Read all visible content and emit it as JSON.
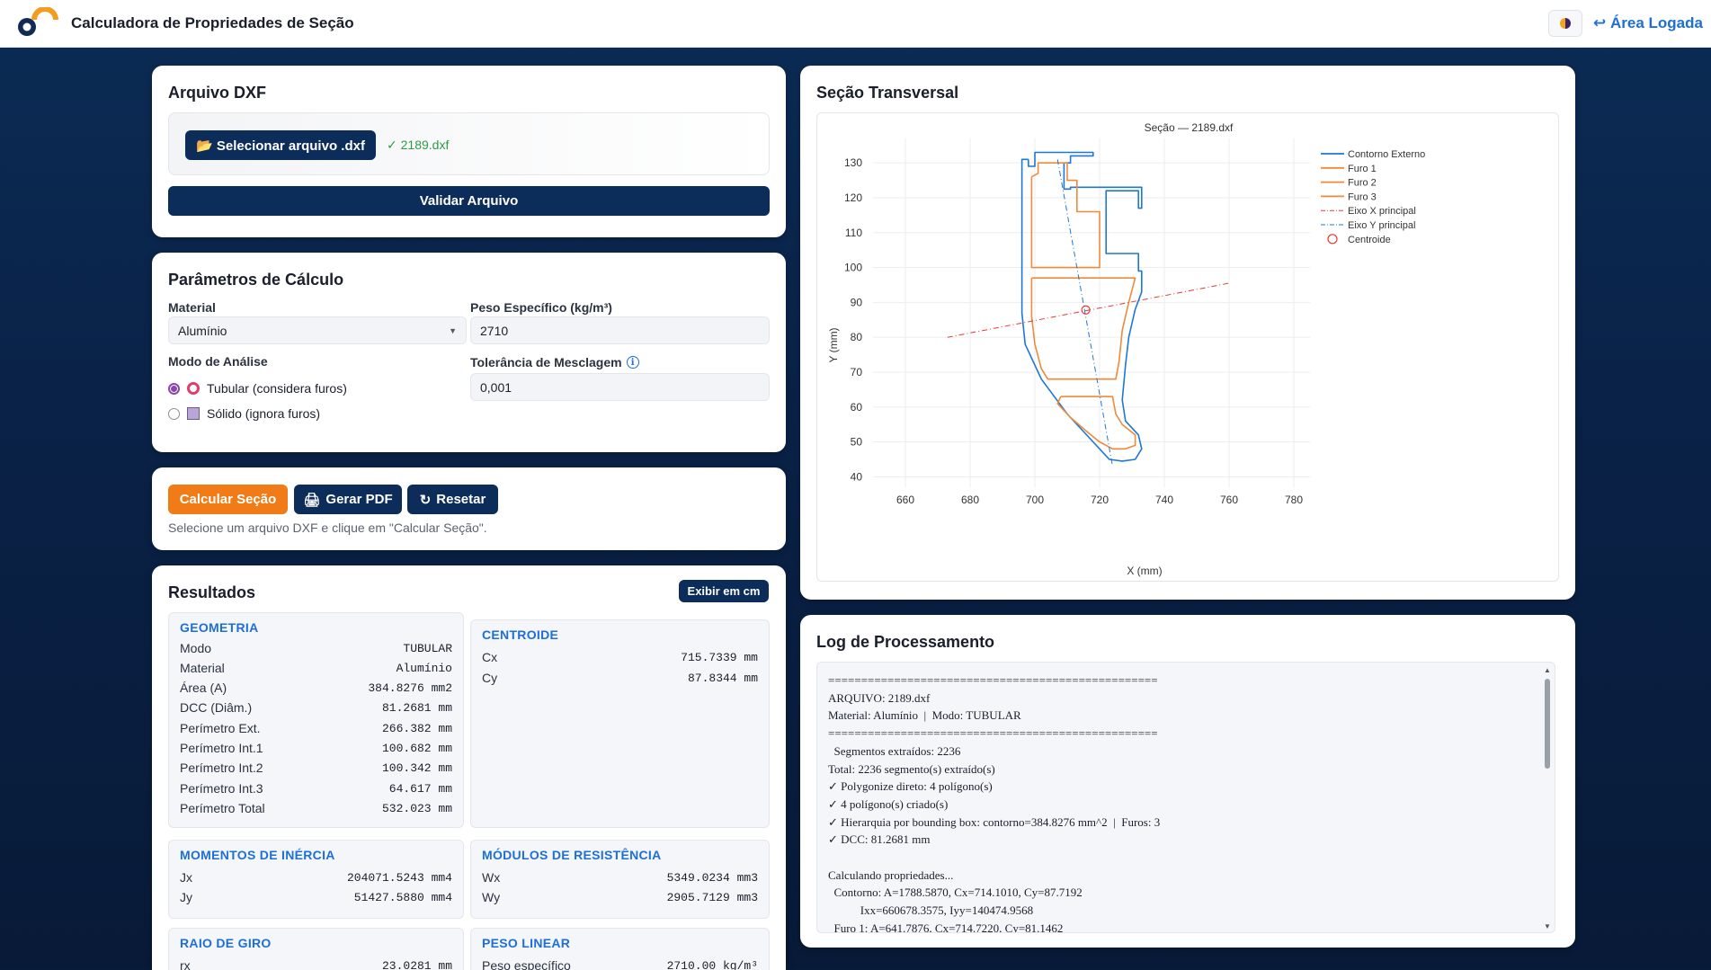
{
  "header": {
    "title": "Calculadora de Propriedades de Seção",
    "area_link": "↩ Área Logada"
  },
  "dxf_card": {
    "title": "Arquivo DXF",
    "select_button": "📂 Selecionar arquivo .dxf",
    "file_status": "✓ 2189.dxf",
    "validate_button": "Validar Arquivo"
  },
  "params": {
    "title": "Parâmetros de Cálculo",
    "material_label": "Material",
    "material_value": "Alumínio",
    "peso_label": "Peso Específico (kg/m³)",
    "peso_value": "2710",
    "modo_label": "Modo de Análise",
    "modo_options": [
      "Tubular (considera furos)",
      "Sólido (ignora furos)"
    ],
    "modo_selected": "Tubular (considera furos)",
    "tolerancia_label": "Tolerância de Mesclagem",
    "tolerancia_value": "0,001"
  },
  "actions": {
    "calc_button": "Calcular Seção",
    "pdf_button": "Gerar PDF",
    "reset_button": "Resetar",
    "hint": "Selecione um arquivo DXF e clique em \"Calcular Seção\"."
  },
  "results": {
    "title": "Resultados",
    "toggle_units": "Exibir em cm",
    "geometria": {
      "title": "GEOMETRIA",
      "rows": [
        {
          "k": "Modo",
          "v": "TUBULAR"
        },
        {
          "k": "Material",
          "v": "Alumínio"
        },
        {
          "k": "Área (A)",
          "v": "384.8276 mm2"
        },
        {
          "k": "DCC (Diâm.)",
          "v": "81.2681 mm"
        },
        {
          "k": "Perímetro Ext.",
          "v": "266.382 mm"
        },
        {
          "k": "Perímetro Int.1",
          "v": "100.682 mm"
        },
        {
          "k": "Perímetro Int.2",
          "v": "100.342 mm"
        },
        {
          "k": "Perímetro Int.3",
          "v": "64.617 mm"
        },
        {
          "k": "Perímetro Total",
          "v": "532.023 mm"
        }
      ]
    },
    "centroide": {
      "title": "CENTROIDE",
      "rows": [
        {
          "k": "Cx",
          "v": "715.7339 mm"
        },
        {
          "k": "Cy",
          "v": "87.8344 mm"
        }
      ]
    },
    "momentos": {
      "title": "MOMENTOS DE INÉRCIA",
      "rows": [
        {
          "k": "Jx",
          "v": "204071.5243 mm4"
        },
        {
          "k": "Jy",
          "v": "51427.5880 mm4"
        }
      ]
    },
    "modulos": {
      "title": "MÓDULOS DE RESISTÊNCIA",
      "rows": [
        {
          "k": "Wx",
          "v": "5349.0234 mm3"
        },
        {
          "k": "Wy",
          "v": "2905.7129 mm3"
        }
      ]
    },
    "raio": {
      "title": "RAIO DE GIRO",
      "rows": [
        {
          "k": "rx",
          "v": "23.0281 mm"
        }
      ]
    },
    "peso_linear": {
      "title": "PESO LINEAR",
      "rows": [
        {
          "k": "Peso específico",
          "v": "2710.00 kg/m³"
        }
      ]
    }
  },
  "section_card": {
    "title": "Seção Transversal"
  },
  "chart_data": {
    "type": "line",
    "title": "Seção — 2189.dxf",
    "xlabel": "X (mm)",
    "ylabel": "Y (mm)",
    "xlim": [
      650,
      785
    ],
    "ylim": [
      37,
      137
    ],
    "xticks": [
      660,
      680,
      700,
      720,
      740,
      760,
      780
    ],
    "yticks": [
      40,
      50,
      60,
      70,
      80,
      90,
      100,
      110,
      120,
      130
    ],
    "grid": true,
    "legend_position": "top-right",
    "series": [
      {
        "name": "Contorno Externo",
        "color": "#1f77d4",
        "style": "solid",
        "points": [
          [
            698,
            131
          ],
          [
            698,
            129
          ],
          [
            700,
            129
          ],
          [
            700,
            133
          ],
          [
            718,
            133
          ],
          [
            718,
            132
          ],
          [
            711,
            132
          ],
          [
            711,
            130
          ],
          [
            709,
            130
          ],
          [
            709,
            122.5
          ],
          [
            711,
            122.5
          ],
          [
            711,
            123
          ],
          [
            712,
            123
          ],
          [
            733,
            123
          ],
          [
            733,
            117
          ],
          [
            732,
            117
          ],
          [
            732,
            122
          ],
          [
            722,
            122
          ],
          [
            722,
            104
          ],
          [
            732,
            104
          ],
          [
            732,
            99
          ],
          [
            733,
            99
          ],
          [
            733,
            93
          ],
          [
            731,
            88
          ],
          [
            729,
            80
          ],
          [
            728,
            72
          ],
          [
            727,
            62
          ],
          [
            728,
            56
          ],
          [
            732,
            52
          ],
          [
            733,
            48
          ],
          [
            731,
            45
          ],
          [
            727,
            44.5
          ],
          [
            723,
            45
          ],
          [
            710,
            58
          ],
          [
            702,
            68
          ],
          [
            697,
            78
          ],
          [
            696,
            87
          ],
          [
            696,
            131
          ],
          [
            698,
            131
          ]
        ]
      },
      {
        "name": "Furo 1",
        "color": "#ee8a3a",
        "style": "solid",
        "points": [
          [
            699,
            126
          ],
          [
            699,
            120
          ],
          [
            699,
            100
          ],
          [
            720,
            100
          ],
          [
            720,
            116
          ],
          [
            713,
            116
          ],
          [
            713,
            125
          ],
          [
            710,
            125
          ],
          [
            710,
            130
          ],
          [
            701,
            130
          ],
          [
            701,
            127
          ],
          [
            699,
            126
          ]
        ]
      },
      {
        "name": "Furo 2",
        "color": "#ee8a3a",
        "style": "solid",
        "points": [
          [
            699,
            97
          ],
          [
            731,
            97
          ],
          [
            729,
            90
          ],
          [
            727,
            82
          ],
          [
            726,
            73
          ],
          [
            725,
            68
          ],
          [
            704,
            68
          ],
          [
            702,
            71
          ],
          [
            700,
            78
          ],
          [
            699,
            86
          ],
          [
            699,
            97
          ]
        ]
      },
      {
        "name": "Furo 3",
        "color": "#ee8a3a",
        "style": "solid",
        "points": [
          [
            708,
            63
          ],
          [
            707,
            61
          ],
          [
            711,
            57
          ],
          [
            716,
            53
          ],
          [
            720,
            50
          ],
          [
            724,
            48
          ],
          [
            728,
            48
          ],
          [
            731,
            49
          ],
          [
            731,
            52
          ],
          [
            727,
            55
          ],
          [
            725,
            58
          ],
          [
            724,
            63
          ],
          [
            708,
            63
          ]
        ]
      },
      {
        "name": "Eixo X principal",
        "color": "#e53935",
        "style": "dashdot",
        "points": [
          [
            673,
            80
          ],
          [
            760,
            95.5
          ]
        ]
      },
      {
        "name": "Eixo Y principal",
        "color": "#1f77d4",
        "style": "dashdot",
        "points": [
          [
            707,
            131
          ],
          [
            724,
            43
          ]
        ]
      },
      {
        "name": "Centroide",
        "color": "#e53935",
        "style": "marker",
        "points": [
          [
            715.7339,
            87.8344
          ]
        ]
      }
    ]
  },
  "log": {
    "title": "Log de Processamento",
    "lines": [
      "==================================================",
      "ARQUIVO: 2189.dxf",
      "Material: Alumínio  |  Modo: TUBULAR",
      "==================================================",
      "  Segmentos extraídos: 2236",
      "Total: 2236 segmento(s) extraído(s)",
      "✓ Polygonize direto: 4 polígono(s)",
      "✓ 4 polígono(s) criado(s)",
      "✓ Hierarquia por bounding box: contorno=384.8276 mm^2  |  Furos: 3",
      "✓ DCC: 81.2681 mm",
      "",
      "Calculando propriedades...",
      "  Contorno: A=1788.5870, Cx=714.1010, Cy=87.7192",
      "           Ixx=660678.3575, Iyy=140474.9568",
      "  Furo 1: A=641.7876, Cx=714.7220, Cy=81.1462"
    ]
  }
}
